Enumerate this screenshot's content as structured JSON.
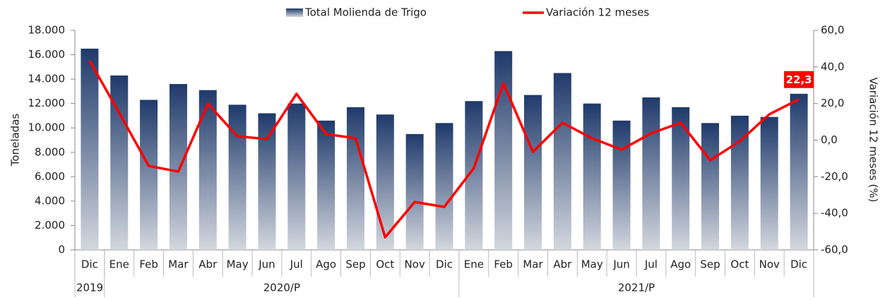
{
  "chart_data": {
    "type": "bar_line",
    "categories": [
      "Dic",
      "Ene",
      "Feb",
      "Mar",
      "Abr",
      "May",
      "Jun",
      "Jul",
      "Ago",
      "Sep",
      "Oct",
      "Nov",
      "Dic",
      "Ene",
      "Feb",
      "Mar",
      "Abr",
      "May",
      "Jun",
      "Jul",
      "Ago",
      "Sep",
      "Oct",
      "Nov",
      "Dic"
    ],
    "groups": [
      {
        "label": "2019",
        "span": 1
      },
      {
        "label": "2020/P",
        "span": 12
      },
      {
        "label": "2021/P",
        "span": 12
      }
    ],
    "series": [
      {
        "name": "Total Molienda de Trigo",
        "color": "#1f3a6b",
        "type": "bar",
        "values": [
          16500,
          14300,
          12300,
          13600,
          13100,
          11900,
          11200,
          12000,
          10600,
          11700,
          11100,
          9500,
          10400,
          12200,
          16300,
          12700,
          14500,
          12000,
          10600,
          12500,
          11700,
          10400,
          11000,
          10900,
          12800
        ]
      },
      {
        "name": "Variación 12 meses",
        "color": "#ff0000",
        "type": "line",
        "axis": "y2",
        "values": [
          43.4,
          14.9,
          -14.1,
          -17.2,
          19.9,
          2.1,
          0.6,
          25.3,
          3.3,
          1.0,
          -53.1,
          -33.8,
          -36.5,
          -15.3,
          31.1,
          -6.4,
          9.5,
          1.0,
          -5.2,
          3.7,
          9.5,
          -11.0,
          -0.6,
          14.1,
          22.3
        ],
        "value_labels": [
          null,
          null,
          null,
          null,
          null,
          null,
          null,
          null,
          null,
          null,
          null,
          null,
          null,
          null,
          null,
          null,
          null,
          null,
          null,
          null,
          null,
          null,
          null,
          null,
          "22,3"
        ]
      }
    ],
    "ylabel": "Toneladas",
    "y2label": "Variación 12 meses (%)",
    "ylim": [
      0,
      18000
    ],
    "yticks": [
      0,
      {
        "value": 2000,
        "label": "2.000"
      },
      {
        "value": 4000,
        "label": "4.000"
      },
      {
        "value": 6000,
        "label": "6.000"
      },
      {
        "value": 8000,
        "label": "8.000"
      },
      {
        "value": 10000,
        "label": "10.000"
      },
      {
        "value": 12000,
        "label": "12.000"
      },
      {
        "value": 14000,
        "label": "14.000"
      },
      {
        "value": 16000,
        "label": "16.000"
      },
      {
        "value": 18000,
        "label": "18.000"
      }
    ],
    "y2lim": [
      -60,
      60
    ],
    "y2ticks": [
      {
        "value": -60,
        "label": "-60,0"
      },
      {
        "value": -40,
        "label": "-40,0"
      },
      {
        "value": -20,
        "label": "-20,0"
      },
      {
        "value": 0,
        "label": "0,0"
      },
      {
        "value": 20,
        "label": "20,0"
      },
      {
        "value": 40,
        "label": "40,0"
      },
      {
        "value": 60,
        "label": "60,0"
      }
    ]
  }
}
